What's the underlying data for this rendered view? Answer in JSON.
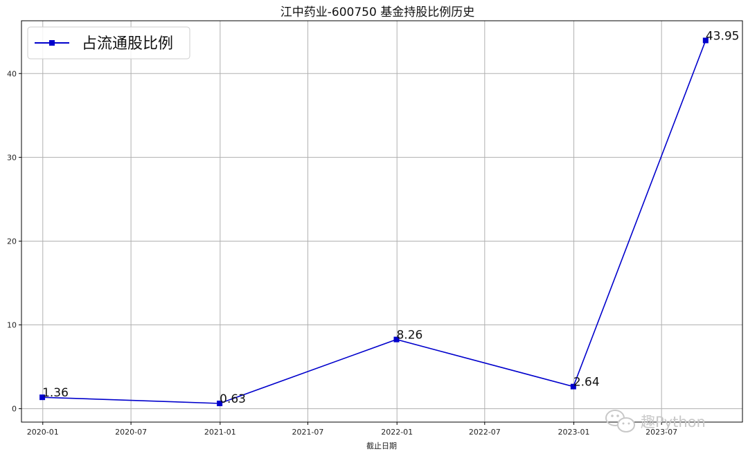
{
  "chart_data": {
    "type": "line",
    "title": "江中药业-600750 基金持股比例历史",
    "xlabel": "截止日期",
    "ylabel": "",
    "x_ticks": [
      "2020-01",
      "2020-07",
      "2021-01",
      "2021-07",
      "2022-01",
      "2022-07",
      "2023-01",
      "2023-07"
    ],
    "y_ticks": [
      "0",
      "10",
      "20",
      "30",
      "40"
    ],
    "ylim": [
      -1.6,
      46.3
    ],
    "xlim": [
      "2019-11-18",
      "2023-12-15"
    ],
    "grid": true,
    "legend_position": "top-left",
    "series": [
      {
        "name": "占流通股比例",
        "color": "#0000cc",
        "marker": "square",
        "x": [
          "2019-12-31",
          "2020-12-31",
          "2021-12-31",
          "2022-12-31",
          "2023-09-30"
        ],
        "values": [
          1.36,
          0.63,
          8.26,
          2.64,
          43.95
        ],
        "labels": [
          "1.36",
          "0.63",
          "8.26",
          "2.64",
          "43.95"
        ]
      }
    ]
  },
  "watermark": {
    "text": "趣Python",
    "icon": "wechat-icon"
  }
}
